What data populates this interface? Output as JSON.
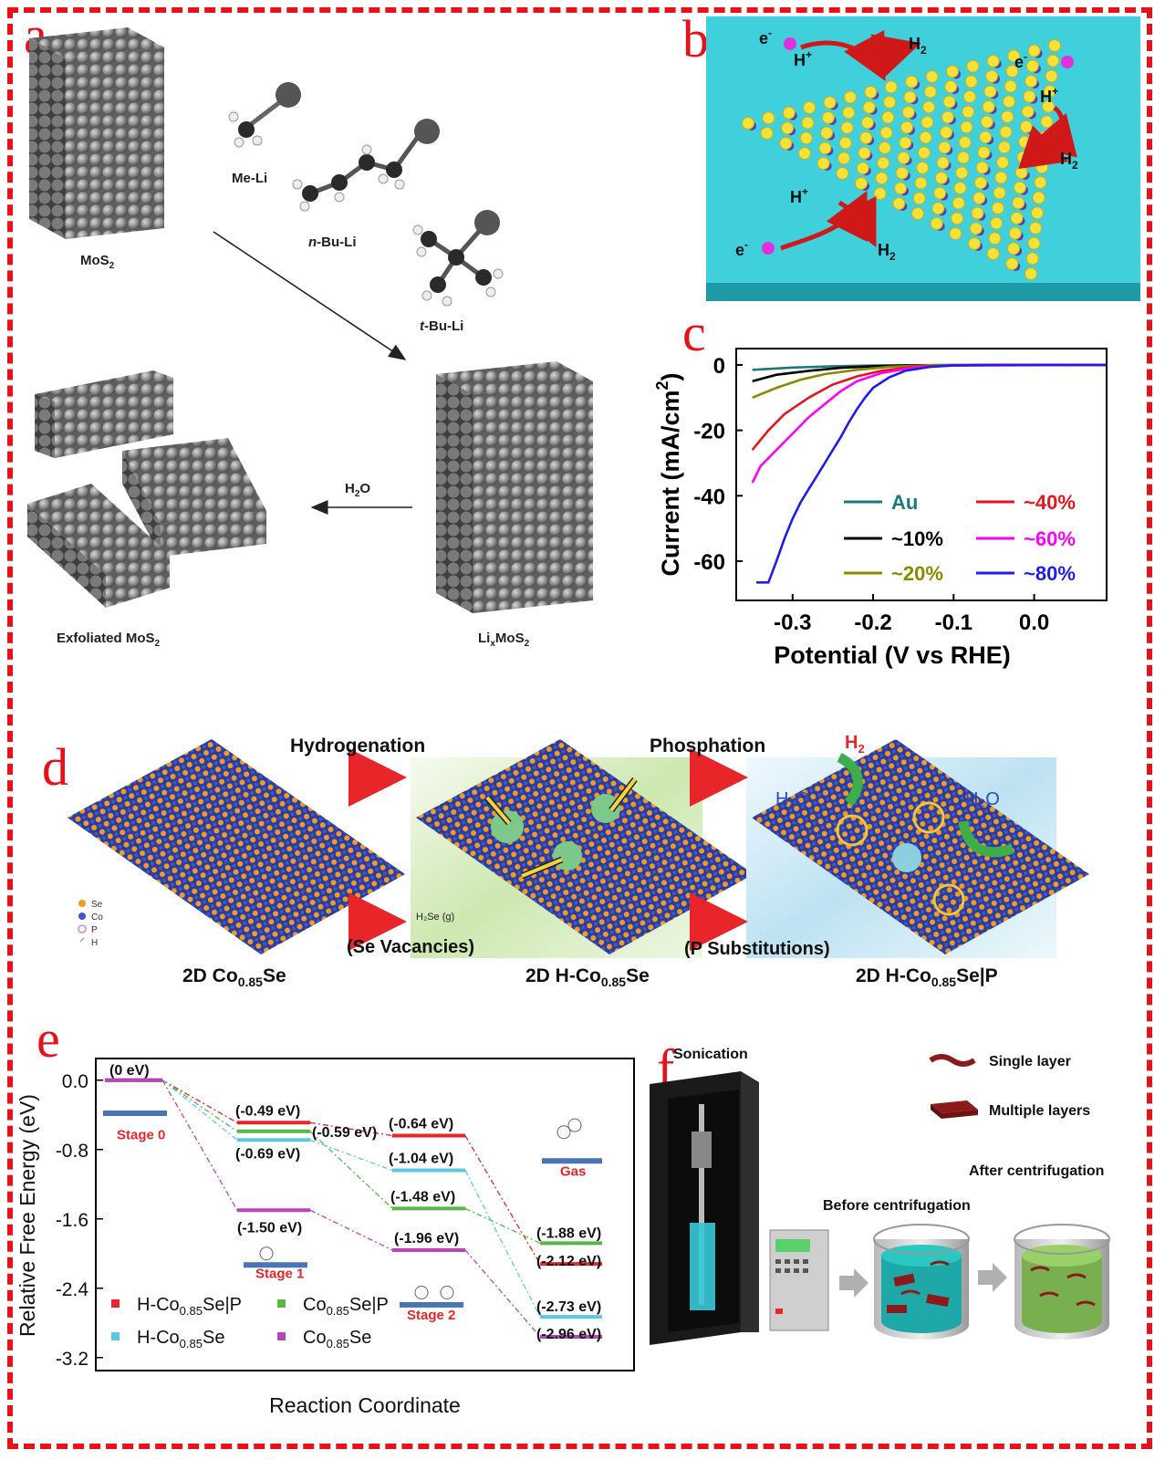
{
  "colors": {
    "frame": "#e8111a",
    "accent": "#e8111a"
  },
  "panels": {
    "a": "a",
    "b": "b",
    "c": "c",
    "d": "d",
    "e": "e",
    "f": "f"
  },
  "panel_a": {
    "mos2": "MoS",
    "mos2_sub": "2",
    "me_li": "Me-Li",
    "nbu_pre": "n",
    "nbu_post": "-Bu-Li",
    "tbu_pre": "t",
    "tbu_post": "-Bu-Li",
    "h2o_pre": "H",
    "h2o_sub": "2",
    "h2o_post": "O",
    "exf": "Exfoliated MoS",
    "exf_sub": "2",
    "lix": "Li",
    "lix_sub": "x",
    "lix_post": "MoS",
    "lix_sub2": "2"
  },
  "panel_b": {
    "e": "e",
    "eminus": "-",
    "hplus": "H",
    "plus": "+",
    "h2": "H",
    "sub2": "2"
  },
  "panel_d": {
    "hydrogenation": "Hydrogenation",
    "phosphation": "Phosphation",
    "se_vac": "(Se Vacancies)",
    "p_sub": "(P Substitutions)",
    "l1_pre": "2D Co",
    "l1_sub": "0.85",
    "l1_post": "Se",
    "l2_pre": "2D H-Co",
    "l2_sub": "0.85",
    "l2_post": "Se",
    "l3_pre": "2D H-Co",
    "l3_sub": "0.85",
    "l3_post": "Se|P",
    "legend": [
      "Se",
      "Co",
      "P",
      "H"
    ],
    "h2se": "H₂Se (g)",
    "h2o": "H₂O",
    "h2": "H"
  },
  "panel_f": {
    "sonication": "Sonication",
    "single": "Single layer",
    "multiple": "Multiple layers",
    "after": "After centrifugation",
    "before": "Before centrifugation"
  },
  "chart_data": [
    {
      "type": "line",
      "panel": "c",
      "xlabel": "Potential (V vs RHE)",
      "ylabel": "Current (mA/cm²)",
      "xlim": [
        -0.37,
        0.09
      ],
      "ylim": [
        -72,
        5
      ],
      "xticks": [
        "-0.3",
        "-0.2",
        "-0.1",
        "0.0"
      ],
      "yticks": [
        "0",
        "-20",
        "-40",
        "-60"
      ],
      "legend_placement": "bottom-right",
      "series": [
        {
          "name": "Au",
          "color": "#1a7a7a",
          "points": [
            [
              -0.35,
              -1.5
            ],
            [
              -0.3,
              -0.8
            ],
            [
              -0.25,
              -0.4
            ],
            [
              -0.2,
              -0.2
            ],
            [
              -0.1,
              0
            ],
            [
              0.09,
              0
            ]
          ]
        },
        {
          "name": "~10%",
          "color": "#000000",
          "points": [
            [
              -0.35,
              -5
            ],
            [
              -0.32,
              -3
            ],
            [
              -0.28,
              -1.8
            ],
            [
              -0.24,
              -0.9
            ],
            [
              -0.2,
              -0.4
            ],
            [
              -0.15,
              -0.1
            ],
            [
              0.09,
              0
            ]
          ]
        },
        {
          "name": "~20%",
          "color": "#8a8a00",
          "points": [
            [
              -0.35,
              -10
            ],
            [
              -0.32,
              -7
            ],
            [
              -0.29,
              -4.5
            ],
            [
              -0.26,
              -2.8
            ],
            [
              -0.22,
              -1.5
            ],
            [
              -0.18,
              -0.6
            ],
            [
              -0.13,
              -0.1
            ],
            [
              0.09,
              0
            ]
          ]
        },
        {
          "name": "~40%",
          "color": "#e8141a",
          "points": [
            [
              -0.35,
              -26
            ],
            [
              -0.33,
              -20
            ],
            [
              -0.31,
              -15
            ],
            [
              -0.28,
              -10
            ],
            [
              -0.25,
              -6
            ],
            [
              -0.22,
              -3.5
            ],
            [
              -0.19,
              -1.8
            ],
            [
              -0.15,
              -0.6
            ],
            [
              -0.1,
              -0.1
            ],
            [
              0.09,
              0
            ]
          ]
        },
        {
          "name": "~60%",
          "color": "#ff00ff",
          "points": [
            [
              -0.35,
              -36
            ],
            [
              -0.34,
              -31
            ],
            [
              -0.32,
              -26
            ],
            [
              -0.3,
              -21
            ],
            [
              -0.28,
              -16
            ],
            [
              -0.26,
              -12
            ],
            [
              -0.24,
              -8
            ],
            [
              -0.22,
              -5
            ],
            [
              -0.19,
              -2.5
            ],
            [
              -0.15,
              -0.8
            ],
            [
              -0.1,
              -0.2
            ],
            [
              0.09,
              0
            ]
          ]
        },
        {
          "name": "~80%",
          "color": "#1d1df0",
          "points": [
            [
              -0.345,
              -66.5
            ],
            [
              -0.33,
              -66.5
            ],
            [
              -0.32,
              -60
            ],
            [
              -0.31,
              -53
            ],
            [
              -0.3,
              -47
            ],
            [
              -0.29,
              -42
            ],
            [
              -0.28,
              -38
            ],
            [
              -0.27,
              -34
            ],
            [
              -0.26,
              -30
            ],
            [
              -0.25,
              -26
            ],
            [
              -0.24,
              -22
            ],
            [
              -0.23,
              -17.5
            ],
            [
              -0.22,
              -13.5
            ],
            [
              -0.21,
              -10
            ],
            [
              -0.2,
              -7
            ],
            [
              -0.18,
              -3.8
            ],
            [
              -0.16,
              -1.8
            ],
            [
              -0.13,
              -0.6
            ],
            [
              -0.1,
              -0.15
            ],
            [
              -0.05,
              0
            ],
            [
              0.09,
              0
            ]
          ]
        }
      ]
    },
    {
      "type": "line",
      "panel": "e",
      "xlabel": "Reaction Coordinate",
      "ylabel": "Relative Free Energy (eV)",
      "ylim": [
        -3.35,
        0.25
      ],
      "yticks": [
        "0.0",
        "-0.8",
        "-1.6",
        "-2.4",
        "-3.2"
      ],
      "categories": [
        "Stage 0",
        "Stage 1",
        "Stage 2",
        "Gas"
      ],
      "legend_placement": "bottom-left",
      "series": [
        {
          "name": "H-Co0.85Se|P",
          "color": "#e8262a",
          "values": [
            0,
            -0.49,
            -0.64,
            -2.12
          ]
        },
        {
          "name": "Co0.85Se|P",
          "color": "#57b847",
          "values": [
            0,
            -0.59,
            -1.48,
            -1.88
          ]
        },
        {
          "name": "H-Co0.85Se",
          "color": "#5bc8e0",
          "values": [
            0,
            -0.69,
            -1.04,
            -2.73
          ]
        },
        {
          "name": "Co0.85Se",
          "color": "#b845b8",
          "values": [
            0,
            -1.5,
            -1.96,
            -2.96
          ]
        }
      ],
      "value_labels": [
        "(0 eV)",
        "(-0.49 eV)",
        "(-0.59 eV)",
        "(-0.69 eV)",
        "(-1.50 eV)",
        "(-0.64 eV)",
        "(-1.04 eV)",
        "(-1.48 eV)",
        "(-1.96 eV)",
        "(-1.88 eV)",
        "(-2.12 eV)",
        "(-2.73 eV)",
        "(-2.96 eV)"
      ],
      "stage_labels": [
        "Stage 0",
        "Stage 1",
        "Stage 2",
        "Gas"
      ],
      "legend": {
        "s1_pre": "H-Co",
        "s1_post": "Se|P",
        "s2_pre": "Co",
        "s2_post": "Se|P",
        "s3_pre": "H-Co",
        "s3_post": "Se",
        "s4_pre": "Co",
        "s4_post": "Se",
        "sub": "0.85"
      }
    }
  ]
}
